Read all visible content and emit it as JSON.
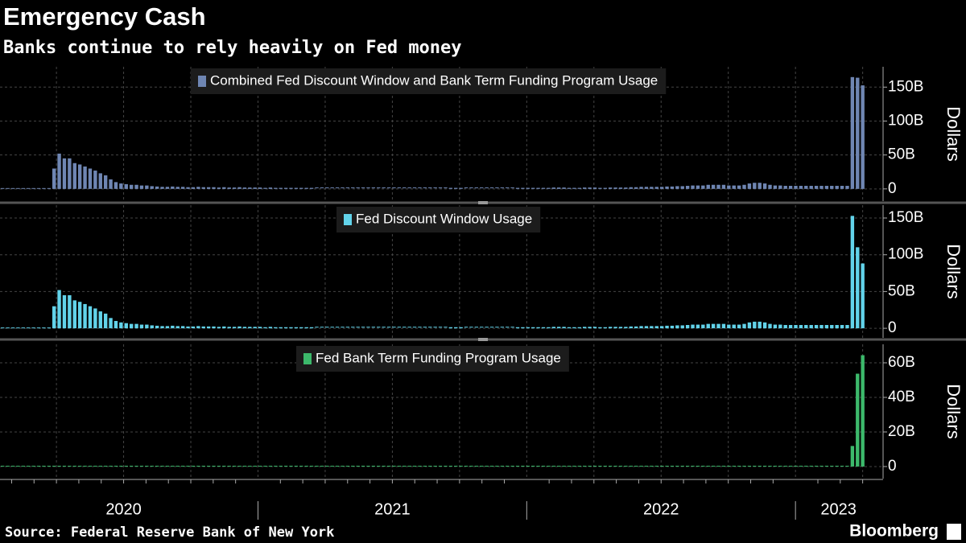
{
  "title": "Emergency Cash",
  "subtitle": "Banks continue to rely heavily on Fed money",
  "source": "Source: Federal Reserve Bank of New York",
  "brand": "Bloomberg",
  "chart_data": [
    {
      "type": "bar",
      "ylabel": "Dollars",
      "xlim": [
        2020.04,
        2023.32
      ],
      "ylim": [
        -18,
        180
      ],
      "yticks": [
        0,
        {
          "value": 50,
          "label": "50B"
        },
        {
          "value": 100,
          "label": "100B"
        },
        {
          "value": 150,
          "label": "150B"
        }
      ],
      "grid": true,
      "series": [
        {
          "name": "Combined Fed Discount Window and Bank Term Funding Program Usage",
          "color": "#6f86b3",
          "values": [
            0,
            0,
            0,
            0,
            0,
            0,
            0,
            0,
            0,
            0,
            30,
            52,
            45,
            45,
            38,
            36,
            33,
            30,
            27,
            23,
            20,
            14,
            10,
            8,
            7,
            6,
            6,
            5,
            5,
            4,
            3.5,
            3,
            3,
            3.5,
            3,
            3,
            2.5,
            2.5,
            3,
            2.5,
            2.5,
            2.5,
            2,
            2.5,
            2,
            2,
            2.5,
            2,
            2,
            2,
            2,
            1.5,
            2,
            1.5,
            1.5,
            1.5,
            1.5,
            1.5,
            1.5,
            1.5,
            1.5,
            1,
            1,
            1,
            1,
            1,
            1,
            1,
            1,
            1,
            1,
            1,
            1,
            1,
            1,
            1,
            1,
            1,
            1,
            1,
            1,
            1,
            1,
            1,
            1,
            1,
            1,
            1.5,
            1.5,
            1.5,
            1,
            1,
            1,
            1,
            1,
            1,
            1,
            1,
            1,
            1,
            1.5,
            1.5,
            1.5,
            1.5,
            1.5,
            1.5,
            1.5,
            2,
            2,
            2,
            1.5,
            1.5,
            1.5,
            2,
            2,
            2,
            1.5,
            1.5,
            2,
            2,
            2,
            2,
            2.5,
            2.5,
            3,
            3,
            3,
            3,
            3,
            3.5,
            3.5,
            4,
            4,
            4.5,
            5,
            5,
            5,
            6,
            6,
            6,
            6,
            5,
            5,
            5,
            6,
            8,
            9,
            9,
            8,
            6,
            5,
            5,
            4.5,
            4.5,
            4.5,
            4.5,
            4.5,
            4.5,
            4.5,
            4.5,
            4.5,
            4.5,
            4.5,
            4.5,
            4.5,
            164.8,
            163.9,
            152.6
          ]
        }
      ]
    },
    {
      "type": "bar",
      "ylabel": "Dollars",
      "xlim": [
        2020.04,
        2023.32
      ],
      "ylim": [
        -13,
        167.5
      ],
      "yticks": [
        0,
        {
          "value": 50,
          "label": "50B"
        },
        {
          "value": 100,
          "label": "100B"
        },
        {
          "value": 150,
          "label": "150B"
        }
      ],
      "grid": true,
      "series": [
        {
          "name": "Fed Discount Window Usage",
          "color": "#62d3ea",
          "values": [
            0,
            0,
            0,
            0,
            0,
            0,
            0,
            0,
            0,
            0,
            30,
            52,
            45,
            45,
            38,
            36,
            33,
            30,
            27,
            23,
            20,
            14,
            10,
            8,
            7,
            6,
            6,
            5,
            5,
            4,
            3.5,
            3,
            3,
            3.5,
            3,
            3,
            2.5,
            2.5,
            3,
            2.5,
            2.5,
            2.5,
            2,
            2.5,
            2,
            2,
            2.5,
            2,
            2,
            2,
            2,
            1.5,
            2,
            1.5,
            1.5,
            1.5,
            1.5,
            1.5,
            1.5,
            1.5,
            1.5,
            1,
            1,
            1,
            1,
            1,
            1,
            1,
            1,
            1,
            1,
            1,
            1,
            1,
            1,
            1,
            1,
            1,
            1,
            1,
            1,
            1,
            1,
            1,
            1,
            1,
            1,
            1.5,
            1.5,
            1.5,
            1,
            1,
            1,
            1,
            1,
            1,
            1,
            1,
            1,
            1,
            1.5,
            1.5,
            1.5,
            1.5,
            1.5,
            1.5,
            1.5,
            2,
            2,
            2,
            1.5,
            1.5,
            1.5,
            2,
            2,
            2,
            1.5,
            1.5,
            2,
            2,
            2,
            2,
            2.5,
            2.5,
            3,
            3,
            3,
            3,
            3,
            3.5,
            3.5,
            4,
            4,
            4.5,
            5,
            5,
            5,
            6,
            6,
            6,
            6,
            5,
            5,
            5,
            6,
            8,
            9,
            9,
            8,
            6,
            5,
            5,
            4.5,
            4.5,
            4.5,
            4.5,
            4.5,
            4.5,
            4.5,
            4.5,
            4.5,
            4.5,
            4.5,
            4.5,
            4.5,
            152.9,
            110.2,
            88.2
          ]
        }
      ]
    },
    {
      "type": "bar",
      "ylabel": "Dollars",
      "xlim": [
        2020.04,
        2023.32
      ],
      "ylim": [
        -7,
        70.7
      ],
      "yticks": [
        0,
        {
          "value": 20,
          "label": "20B"
        },
        {
          "value": 40,
          "label": "40B"
        },
        {
          "value": 60,
          "label": "60B"
        }
      ],
      "grid": true,
      "xticks": [
        {
          "value": 2020.5,
          "label": "2020"
        },
        {
          "value": 2021.5,
          "label": "2021"
        },
        {
          "value": 2022.5,
          "label": "2022"
        },
        {
          "value": 2023.16,
          "label": "2023"
        }
      ],
      "series": [
        {
          "name": "Fed Bank Term Funding Program Usage",
          "color": "#3cb96b",
          "values": [
            0,
            0,
            0,
            0,
            0,
            0,
            0,
            0,
            0,
            0,
            0,
            0,
            0,
            0,
            0,
            0,
            0,
            0,
            0,
            0,
            0,
            0,
            0,
            0,
            0,
            0,
            0,
            0,
            0,
            0,
            0,
            0,
            0,
            0,
            0,
            0,
            0,
            0,
            0,
            0,
            0,
            0,
            0,
            0,
            0,
            0,
            0,
            0,
            0,
            0,
            0,
            0,
            0,
            0,
            0,
            0,
            0,
            0,
            0,
            0,
            0,
            0,
            0,
            0,
            0,
            0,
            0,
            0,
            0,
            0,
            0,
            0,
            0,
            0,
            0,
            0,
            0,
            0,
            0,
            0,
            0,
            0,
            0,
            0,
            0,
            0,
            0,
            0,
            0,
            0,
            0,
            0,
            0,
            0,
            0,
            0,
            0,
            0,
            0,
            0,
            0,
            0,
            0,
            0,
            0,
            0,
            0,
            0,
            0,
            0,
            0,
            0,
            0,
            0,
            0,
            0,
            0,
            0,
            0,
            0,
            0,
            0,
            0,
            0,
            0,
            0,
            0,
            0,
            0,
            0,
            0,
            0,
            0,
            0,
            0,
            0,
            0,
            0,
            0,
            0,
            0,
            0,
            0,
            0,
            0,
            0,
            0,
            0,
            0,
            0,
            0,
            0,
            0,
            0,
            0,
            0,
            0,
            0,
            0,
            0,
            0,
            0,
            0,
            0,
            0,
            11.9,
            53.7,
            64.4
          ]
        }
      ]
    }
  ]
}
